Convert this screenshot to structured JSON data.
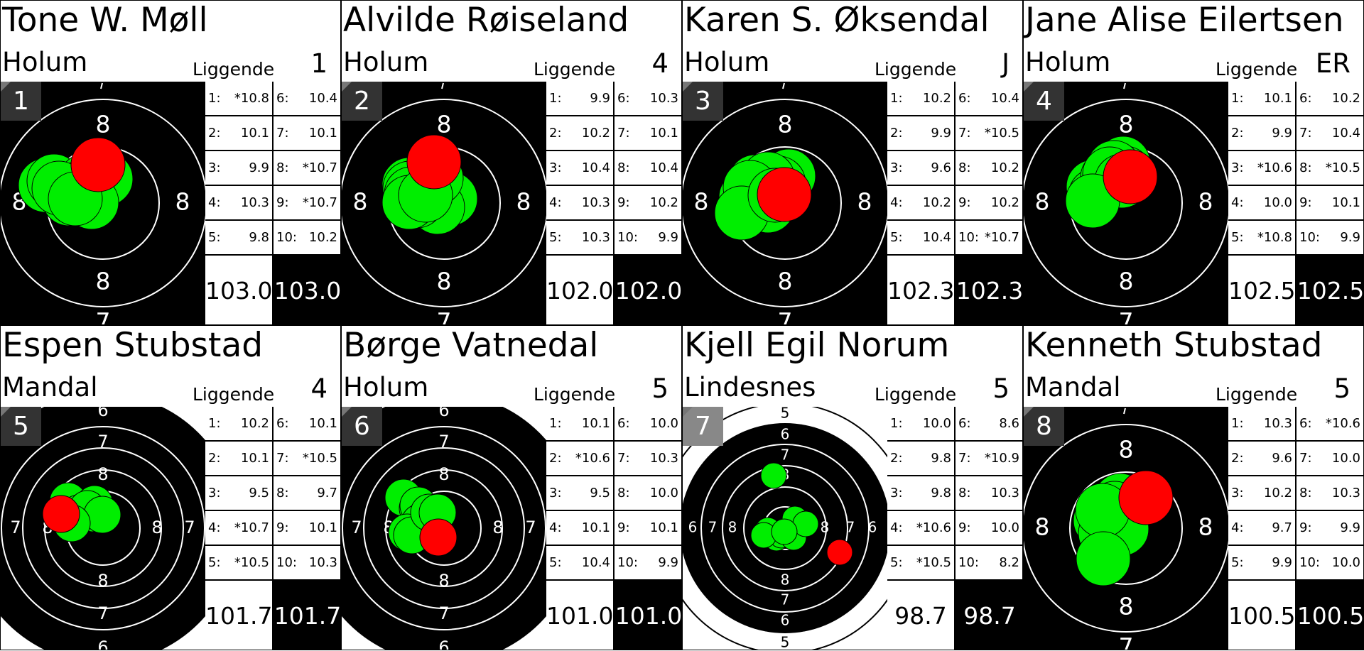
{
  "colors": {
    "hit": "#00ee00",
    "last_hit": "#ff0000",
    "target_black": "#000000",
    "ring": "#ffffff"
  },
  "shooters": [
    {
      "lane": "1",
      "name": "Tone W. Møll",
      "club": "Holum",
      "position": "Liggende",
      "class": "1",
      "target_rings": [
        "8",
        "8",
        "8",
        "8",
        "7"
      ],
      "target_type": "prone",
      "shots": [
        {
          "n": "1:",
          "v": "*10.8"
        },
        {
          "n": "2:",
          "v": "10.1"
        },
        {
          "n": "3:",
          "v": "9.9"
        },
        {
          "n": "4:",
          "v": "10.3"
        },
        {
          "n": "5:",
          "v": "9.8"
        },
        {
          "n": "6:",
          "v": "10.4"
        },
        {
          "n": "7:",
          "v": "10.1"
        },
        {
          "n": "8:",
          "v": "*10.7"
        },
        {
          "n": "9:",
          "v": "*10.7"
        },
        {
          "n": "10:",
          "v": "10.2"
        }
      ],
      "series_sum": "103.0",
      "total": "103.0"
    },
    {
      "lane": "2",
      "name": "Alvilde Røiseland",
      "club": "Holum",
      "position": "Liggende",
      "class": "4",
      "target_rings": [
        "8",
        "8",
        "8",
        "8",
        "7"
      ],
      "target_type": "prone",
      "shots": [
        {
          "n": "1:",
          "v": "9.9"
        },
        {
          "n": "2:",
          "v": "10.2"
        },
        {
          "n": "3:",
          "v": "10.4"
        },
        {
          "n": "4:",
          "v": "10.3"
        },
        {
          "n": "5:",
          "v": "10.3"
        },
        {
          "n": "6:",
          "v": "10.3"
        },
        {
          "n": "7:",
          "v": "10.1"
        },
        {
          "n": "8:",
          "v": "10.4"
        },
        {
          "n": "9:",
          "v": "10.2"
        },
        {
          "n": "10:",
          "v": "9.9"
        }
      ],
      "series_sum": "102.0",
      "total": "102.0"
    },
    {
      "lane": "3",
      "name": "Karen S. Øksendal",
      "club": "Holum",
      "position": "Liggende",
      "class": "J",
      "target_rings": [
        "8",
        "8",
        "8",
        "8",
        "7"
      ],
      "target_type": "prone",
      "shots": [
        {
          "n": "1:",
          "v": "10.2"
        },
        {
          "n": "2:",
          "v": "9.9"
        },
        {
          "n": "3:",
          "v": "9.6"
        },
        {
          "n": "4:",
          "v": "10.2"
        },
        {
          "n": "5:",
          "v": "10.4"
        },
        {
          "n": "6:",
          "v": "10.4"
        },
        {
          "n": "7:",
          "v": "*10.5"
        },
        {
          "n": "8:",
          "v": "10.2"
        },
        {
          "n": "9:",
          "v": "10.2"
        },
        {
          "n": "10:",
          "v": "*10.7"
        }
      ],
      "series_sum": "102.3",
      "total": "102.3"
    },
    {
      "lane": "4",
      "name": "Jane Alise Eilertsen",
      "club": "Holum",
      "position": "Liggende",
      "class": "ER",
      "target_rings": [
        "8",
        "8",
        "8",
        "8",
        "7"
      ],
      "target_type": "prone",
      "shots": [
        {
          "n": "1:",
          "v": "10.1"
        },
        {
          "n": "2:",
          "v": "9.9"
        },
        {
          "n": "3:",
          "v": "*10.6"
        },
        {
          "n": "4:",
          "v": "10.0"
        },
        {
          "n": "5:",
          "v": "*10.8"
        },
        {
          "n": "6:",
          "v": "10.2"
        },
        {
          "n": "7:",
          "v": "10.4"
        },
        {
          "n": "8:",
          "v": "*10.5"
        },
        {
          "n": "9:",
          "v": "10.1"
        },
        {
          "n": "10:",
          "v": "9.9"
        }
      ],
      "series_sum": "102.5",
      "total": "102.5"
    },
    {
      "lane": "5",
      "name": "Espen Stubstad",
      "club": "Mandal",
      "position": "Liggende",
      "class": "4",
      "target_rings": [
        "6",
        "7",
        "8",
        "7",
        "8",
        "8",
        "7",
        "8",
        "7",
        "6"
      ],
      "target_type": "standard",
      "shots": [
        {
          "n": "1:",
          "v": "10.2"
        },
        {
          "n": "2:",
          "v": "10.1"
        },
        {
          "n": "3:",
          "v": "9.5"
        },
        {
          "n": "4:",
          "v": "*10.7"
        },
        {
          "n": "5:",
          "v": "*10.5"
        },
        {
          "n": "6:",
          "v": "10.1"
        },
        {
          "n": "7:",
          "v": "*10.5"
        },
        {
          "n": "8:",
          "v": "9.7"
        },
        {
          "n": "9:",
          "v": "10.1"
        },
        {
          "n": "10:",
          "v": "10.3"
        }
      ],
      "series_sum": "101.7",
      "total": "101.7"
    },
    {
      "lane": "6",
      "name": "Børge Vatnedal",
      "club": "Holum",
      "position": "Liggende",
      "class": "5",
      "target_rings": [
        "6",
        "7",
        "8",
        "7",
        "8",
        "8",
        "7",
        "8",
        "7",
        "6"
      ],
      "target_type": "standard",
      "shots": [
        {
          "n": "1:",
          "v": "10.1"
        },
        {
          "n": "2:",
          "v": "*10.6"
        },
        {
          "n": "3:",
          "v": "9.5"
        },
        {
          "n": "4:",
          "v": "10.1"
        },
        {
          "n": "5:",
          "v": "10.4"
        },
        {
          "n": "6:",
          "v": "10.0"
        },
        {
          "n": "7:",
          "v": "10.3"
        },
        {
          "n": "8:",
          "v": "10.0"
        },
        {
          "n": "9:",
          "v": "10.1"
        },
        {
          "n": "10:",
          "v": "9.9"
        }
      ],
      "series_sum": "101.0",
      "total": "101.0"
    },
    {
      "lane": "7",
      "name": "Kjell Egil Norum",
      "club": "Lindesnes",
      "position": "Liggende",
      "class": "5",
      "target_rings": [
        "5",
        "6",
        "7",
        "8",
        "6",
        "7",
        "8",
        "8",
        "7",
        "6",
        "8",
        "7",
        "6",
        "5"
      ],
      "target_type": "wide",
      "shots": [
        {
          "n": "1:",
          "v": "10.0"
        },
        {
          "n": "2:",
          "v": "9.8"
        },
        {
          "n": "3:",
          "v": "9.8"
        },
        {
          "n": "4:",
          "v": "*10.6"
        },
        {
          "n": "5:",
          "v": "*10.5"
        },
        {
          "n": "6:",
          "v": "8.6"
        },
        {
          "n": "7:",
          "v": "*10.9"
        },
        {
          "n": "8:",
          "v": "10.3"
        },
        {
          "n": "9:",
          "v": "10.0"
        },
        {
          "n": "10:",
          "v": "8.2"
        }
      ],
      "series_sum": "98.7",
      "total": "98.7"
    },
    {
      "lane": "8",
      "name": "Kenneth Stubstad",
      "club": "Mandal",
      "position": "Liggende",
      "class": "5",
      "target_rings": [
        "8",
        "8",
        "8",
        "8",
        "7"
      ],
      "target_type": "prone",
      "shots": [
        {
          "n": "1:",
          "v": "10.3"
        },
        {
          "n": "2:",
          "v": "9.6"
        },
        {
          "n": "3:",
          "v": "10.2"
        },
        {
          "n": "4:",
          "v": "9.7"
        },
        {
          "n": "5:",
          "v": "9.9"
        },
        {
          "n": "6:",
          "v": "*10.6"
        },
        {
          "n": "7:",
          "v": "10.0"
        },
        {
          "n": "8:",
          "v": "10.3"
        },
        {
          "n": "9:",
          "v": "9.9"
        },
        {
          "n": "10:",
          "v": "10.0"
        }
      ],
      "series_sum": "100.5",
      "total": "100.5"
    }
  ]
}
